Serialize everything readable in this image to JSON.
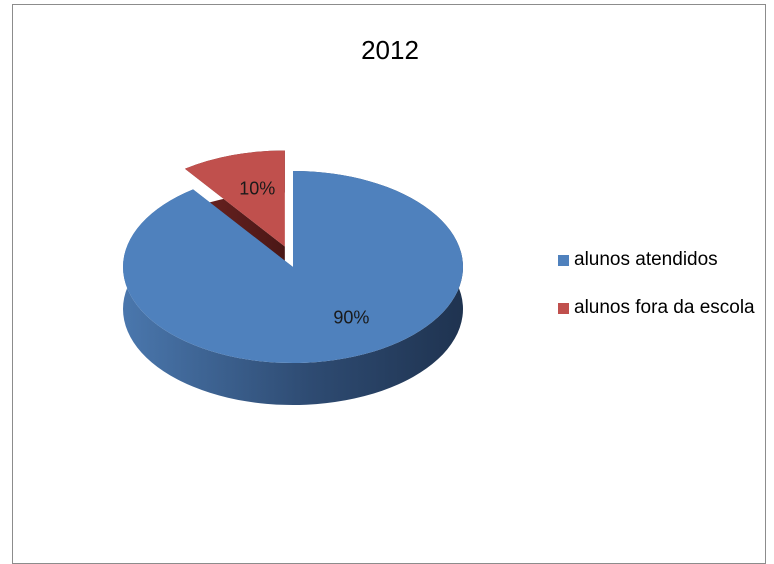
{
  "chart_data": {
    "type": "pie",
    "title": "2012",
    "categories": [
      "alunos atendidos",
      "alunos fora da escola"
    ],
    "values": [
      90,
      10
    ],
    "data_labels": [
      "90%",
      "10%"
    ],
    "colors": [
      "#4f81bd",
      "#c0504d"
    ],
    "legend_position": "right",
    "style": "3d-exploded"
  },
  "legend": {
    "items": [
      {
        "label": "alunos atendidos",
        "color": "#4f81bd"
      },
      {
        "label": "alunos fora da escola",
        "color": "#c0504d"
      }
    ]
  }
}
